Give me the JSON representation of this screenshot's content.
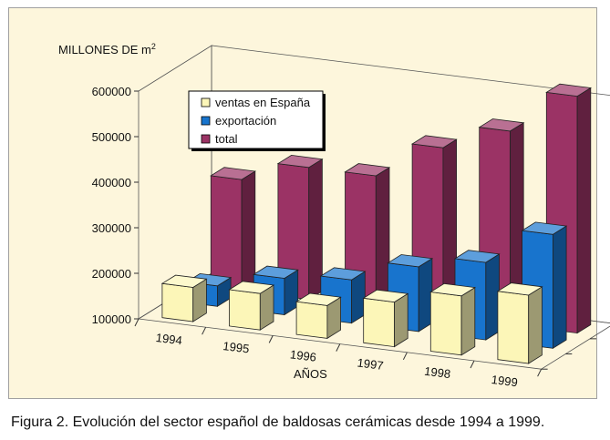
{
  "caption": "Figura 2. Evolución del sector español de baldosas cerámicas desde 1994 a 1999.",
  "colors": {
    "background": "#fdf6dc",
    "ventas": "#fcf6b8",
    "exportacion": "#1874cd",
    "total": "#9b3365"
  },
  "chart_data": {
    "type": "bar",
    "style": "3d-column",
    "ylabel_main": "MILLONES DE m",
    "ylabel_sup": "2",
    "xlabel": "AÑOS",
    "categories": [
      "1994",
      "1995",
      "1996",
      "1997",
      "1998",
      "1999"
    ],
    "ylim": [
      100000,
      600000
    ],
    "yticks": [
      "100000",
      "200000",
      "300000",
      "400000",
      "500000",
      "600000"
    ],
    "legend_position": "top-left",
    "series": [
      {
        "name": "ventas en España",
        "values": [
          175000,
          180000,
          172000,
          198000,
          230000,
          250000
        ]
      },
      {
        "name": "exportación",
        "values": [
          145000,
          180000,
          195000,
          242000,
          270000,
          350000
        ]
      },
      {
        "name": "total",
        "values": [
          345000,
          390000,
          390000,
          470000,
          525000,
          620000
        ]
      }
    ]
  }
}
